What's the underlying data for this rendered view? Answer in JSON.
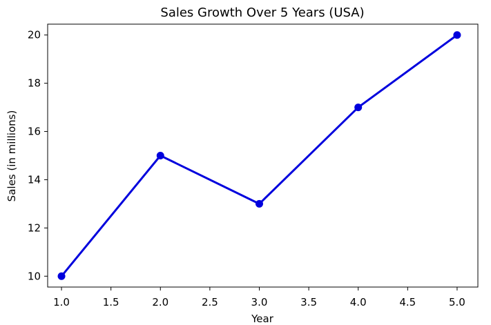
{
  "chart_data": {
    "type": "line",
    "title": "Sales Growth Over 5 Years (USA)",
    "xlabel": "Year",
    "ylabel": "Sales (in millions)",
    "xlim": [
      0.86,
      5.21
    ],
    "ylim": [
      9.55,
      20.45
    ],
    "xticks": [
      1.0,
      1.5,
      2.0,
      2.5,
      3.0,
      3.5,
      4.0,
      4.5,
      5.0
    ],
    "xtick_labels": [
      "1.0",
      "1.5",
      "2.0",
      "2.5",
      "3.0",
      "3.5",
      "4.0",
      "4.5",
      "5.0"
    ],
    "yticks": [
      10,
      12,
      14,
      16,
      18,
      20
    ],
    "ytick_labels": [
      "10",
      "12",
      "14",
      "16",
      "18",
      "20"
    ],
    "grid": false,
    "legend": null,
    "series": [
      {
        "color": "#0000dd",
        "marker": "circle",
        "x": [
          1,
          2,
          3,
          4,
          5
        ],
        "y": [
          10,
          15,
          13,
          17,
          20
        ]
      }
    ]
  }
}
